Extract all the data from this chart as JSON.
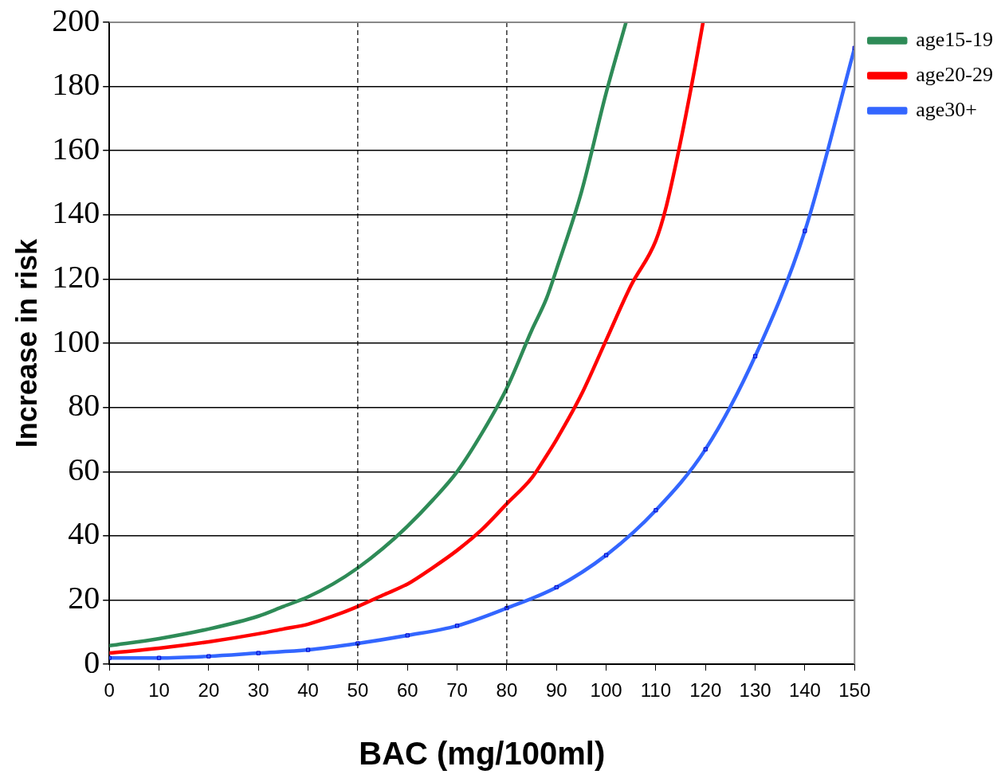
{
  "chart_data": {
    "type": "line",
    "xlabel": "BAC (mg/100ml)",
    "ylabel": "Increase in risk",
    "xlim": [
      0,
      150
    ],
    "xticks": [
      0,
      10,
      20,
      30,
      40,
      50,
      60,
      70,
      80,
      90,
      100,
      110,
      120,
      130,
      140,
      150
    ],
    "ylim": [
      0,
      200
    ],
    "yticks": [
      0,
      20,
      40,
      60,
      80,
      100,
      120,
      140,
      160,
      180,
      200
    ],
    "grid": "y",
    "legend": "top right",
    "line_style": "solid",
    "ref_lines": [
      {
        "axis": "x",
        "value": 50,
        "line_style": "dashed",
        "color": "#000000"
      },
      {
        "axis": "x",
        "value": 80,
        "line_style": "dashed",
        "color": "#000000"
      }
    ],
    "series": [
      {
        "name": "age15-19",
        "color": "#2e8b57",
        "marker": "none",
        "x": [
          0,
          10,
          20,
          30,
          35,
          40,
          45,
          50,
          55,
          60,
          65,
          70,
          75,
          80,
          85,
          88,
          90,
          95,
          100,
          104
        ],
        "values": [
          5.8,
          8,
          11,
          15,
          18,
          21,
          25,
          30,
          36,
          43,
          51,
          60,
          72,
          86,
          104,
          114,
          123,
          147,
          178,
          200
        ]
      },
      {
        "name": "age20-29",
        "color": "#ff0000",
        "marker": "none",
        "x": [
          0,
          10,
          20,
          30,
          35,
          40,
          45,
          50,
          55,
          60,
          65,
          70,
          75,
          80,
          85,
          88,
          90,
          95,
          100,
          105,
          110,
          112,
          115,
          118,
          119.5
        ],
        "values": [
          3.5,
          5,
          7,
          9.5,
          11,
          12.5,
          15,
          18,
          21.5,
          25,
          30,
          35.5,
          42,
          50,
          58,
          65,
          70,
          84,
          101,
          118,
          132,
          142,
          163,
          187,
          200
        ]
      },
      {
        "name": "age30+",
        "color": "#3366ff",
        "marker": "square",
        "x": [
          0,
          10,
          20,
          30,
          40,
          50,
          60,
          70,
          80,
          90,
          100,
          110,
          120,
          130,
          140,
          150
        ],
        "values": [
          2,
          2,
          2.5,
          3.5,
          4.5,
          6.5,
          9,
          12,
          17.5,
          24,
          34,
          48,
          67,
          96,
          135,
          192
        ]
      }
    ]
  }
}
